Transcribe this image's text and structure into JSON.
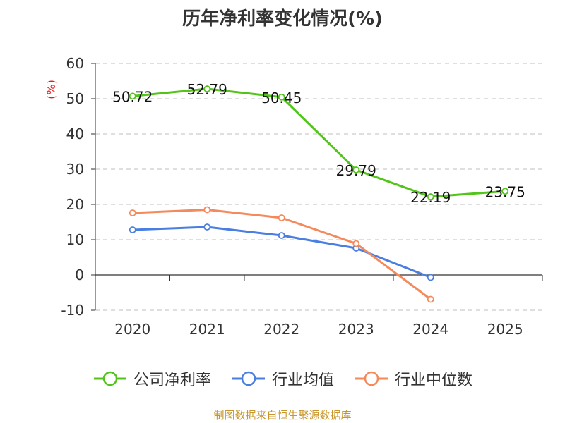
{
  "chart_data": {
    "type": "line",
    "title": "历年净利率变化情况(%)",
    "ylabel": "(%)",
    "xlabel": "",
    "categories": [
      "2020",
      "2021",
      "2022",
      "2023",
      "2024",
      "2025"
    ],
    "ylim": [
      -10,
      60
    ],
    "yticks": [
      60,
      50,
      40,
      30,
      20,
      10,
      0,
      -10
    ],
    "grid": true,
    "legend_position": "bottom",
    "series": [
      {
        "name": "公司净利率",
        "color": "#52c41a",
        "labeled": true,
        "values": [
          50.72,
          52.79,
          50.45,
          29.79,
          22.19,
          23.75
        ]
      },
      {
        "name": "行业均值",
        "color": "#4a7ee0",
        "labeled": false,
        "values": [
          12.8,
          13.6,
          11.2,
          7.6,
          -0.7,
          null
        ]
      },
      {
        "name": "行业中位数",
        "color": "#f5895a",
        "labeled": false,
        "values": [
          17.6,
          18.5,
          16.2,
          8.9,
          -6.9,
          null
        ]
      }
    ]
  },
  "source_text": "制图数据来自恒生聚源数据库",
  "colors": {
    "ylabel": "#e02020",
    "source": "#c8962d",
    "grid": "#cccccc",
    "axis": "#333333"
  }
}
